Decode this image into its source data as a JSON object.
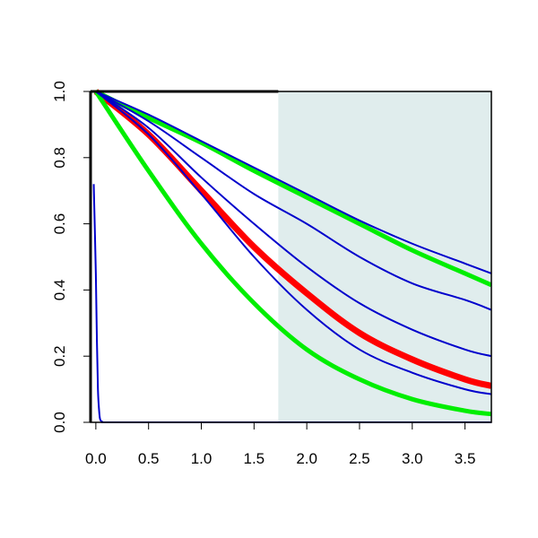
{
  "chart_data": {
    "type": "line",
    "title": "",
    "xlabel": "",
    "ylabel": "",
    "xlim": [
      -0.05,
      3.75
    ],
    "ylim": [
      0,
      1
    ],
    "x_ticks": [
      "0.0",
      "0.5",
      "1.0",
      "1.5",
      "2.0",
      "2.5",
      "3.0",
      "3.5"
    ],
    "y_ticks": [
      "0.0",
      "0.2",
      "0.4",
      "0.6",
      "0.8",
      "1.0"
    ],
    "grid": false,
    "legend": "none",
    "shaded_region": {
      "x_start": 1.73,
      "x_end": 3.75,
      "color": "#e0eded"
    },
    "series": [
      {
        "color": "#ff0000",
        "width": 7,
        "x": [
          0,
          0.5,
          1,
          1.5,
          2,
          2.5,
          3,
          3.5,
          3.75
        ],
        "y": [
          1,
          0.87,
          0.7,
          0.53,
          0.39,
          0.27,
          0.19,
          0.13,
          0.11
        ]
      },
      {
        "color": "#00ee00",
        "width": 5,
        "x": [
          0,
          0.5,
          1,
          1.5,
          2,
          2.5,
          3,
          3.5,
          3.75
        ],
        "y": [
          1,
          0.92,
          0.845,
          0.76,
          0.68,
          0.6,
          0.52,
          0.45,
          0.415
        ]
      },
      {
        "color": "#00ee00",
        "width": 5,
        "x": [
          0,
          0.5,
          1,
          1.5,
          2,
          2.5,
          3,
          3.5,
          3.75
        ],
        "y": [
          1,
          0.76,
          0.54,
          0.36,
          0.22,
          0.13,
          0.07,
          0.035,
          0.025
        ]
      },
      {
        "color": "#0000cc",
        "width": 2,
        "x": [
          0,
          0.5,
          1,
          1.5,
          2,
          2.5,
          3,
          3.5,
          3.75
        ],
        "y": [
          1,
          0.93,
          0.85,
          0.77,
          0.69,
          0.61,
          0.54,
          0.48,
          0.45
        ]
      },
      {
        "color": "#0000cc",
        "width": 2,
        "x": [
          0,
          0.5,
          1,
          1.5,
          2,
          2.5,
          3,
          3.5,
          3.75
        ],
        "y": [
          1,
          0.91,
          0.8,
          0.69,
          0.6,
          0.5,
          0.42,
          0.37,
          0.34
        ]
      },
      {
        "color": "#0000cc",
        "width": 2,
        "x": [
          0,
          0.5,
          1,
          1.5,
          2,
          2.5,
          3,
          3.5,
          3.75
        ],
        "y": [
          1,
          0.89,
          0.74,
          0.6,
          0.47,
          0.36,
          0.28,
          0.22,
          0.2
        ]
      },
      {
        "color": "#0000cc",
        "width": 2,
        "x": [
          0,
          0.5,
          1,
          1.5,
          2,
          2.5,
          3,
          3.5,
          3.75
        ],
        "y": [
          1,
          0.87,
          0.69,
          0.5,
          0.34,
          0.22,
          0.15,
          0.1,
          0.085
        ]
      },
      {
        "color": "#0000cc",
        "width": 2,
        "x": [
          -0.02,
          0,
          0.01,
          0.02,
          0.03,
          0.04,
          0.06,
          0.1,
          0.5,
          3.75
        ],
        "y": [
          0.72,
          0.45,
          0.25,
          0.1,
          0.04,
          0.01,
          0.002,
          0,
          0,
          0
        ]
      }
    ]
  }
}
